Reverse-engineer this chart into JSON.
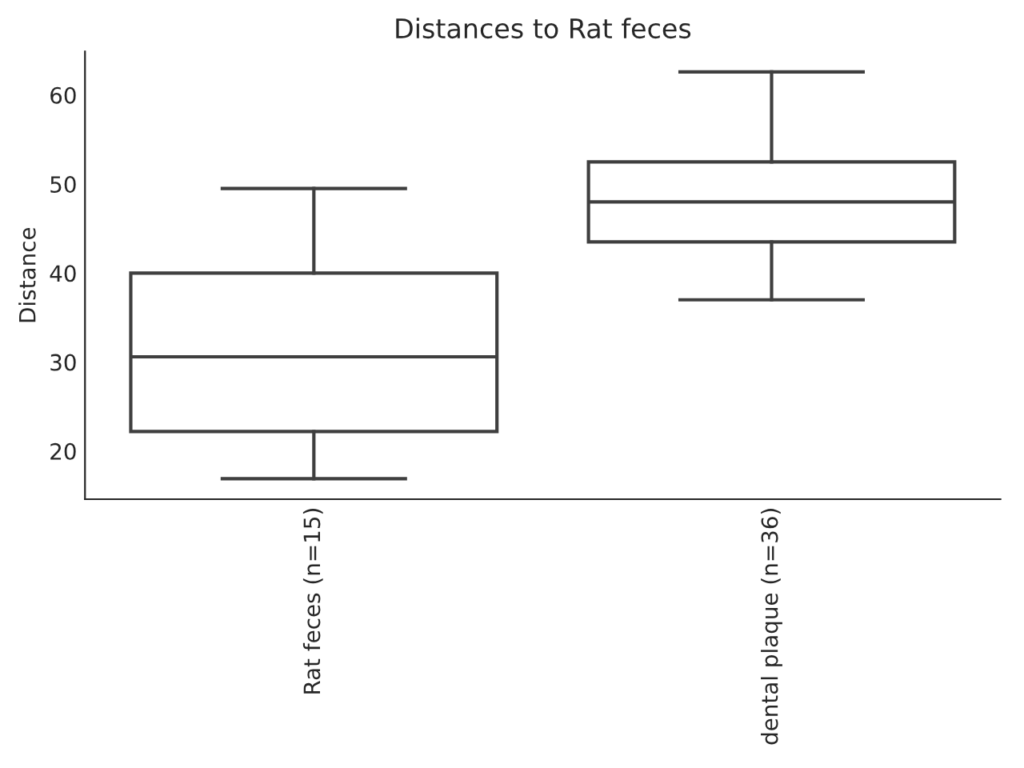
{
  "chart_data": {
    "type": "box",
    "title": "Distances to Rat feces",
    "ylabel": "Distance",
    "categories": [
      "Rat feces (n=15)",
      "dental plaque (n=36)"
    ],
    "boxes": [
      {
        "low": 16.9,
        "q1": 22.2,
        "median": 30.6,
        "q3": 40.0,
        "high": 49.5
      },
      {
        "low": 37.0,
        "q1": 43.5,
        "median": 48.0,
        "q3": 52.5,
        "high": 62.6
      }
    ],
    "color": "#3f3f3f",
    "ylim": [
      14.6,
      64.9
    ],
    "yticks": [
      20,
      30,
      40,
      50,
      60
    ],
    "grid": false
  }
}
